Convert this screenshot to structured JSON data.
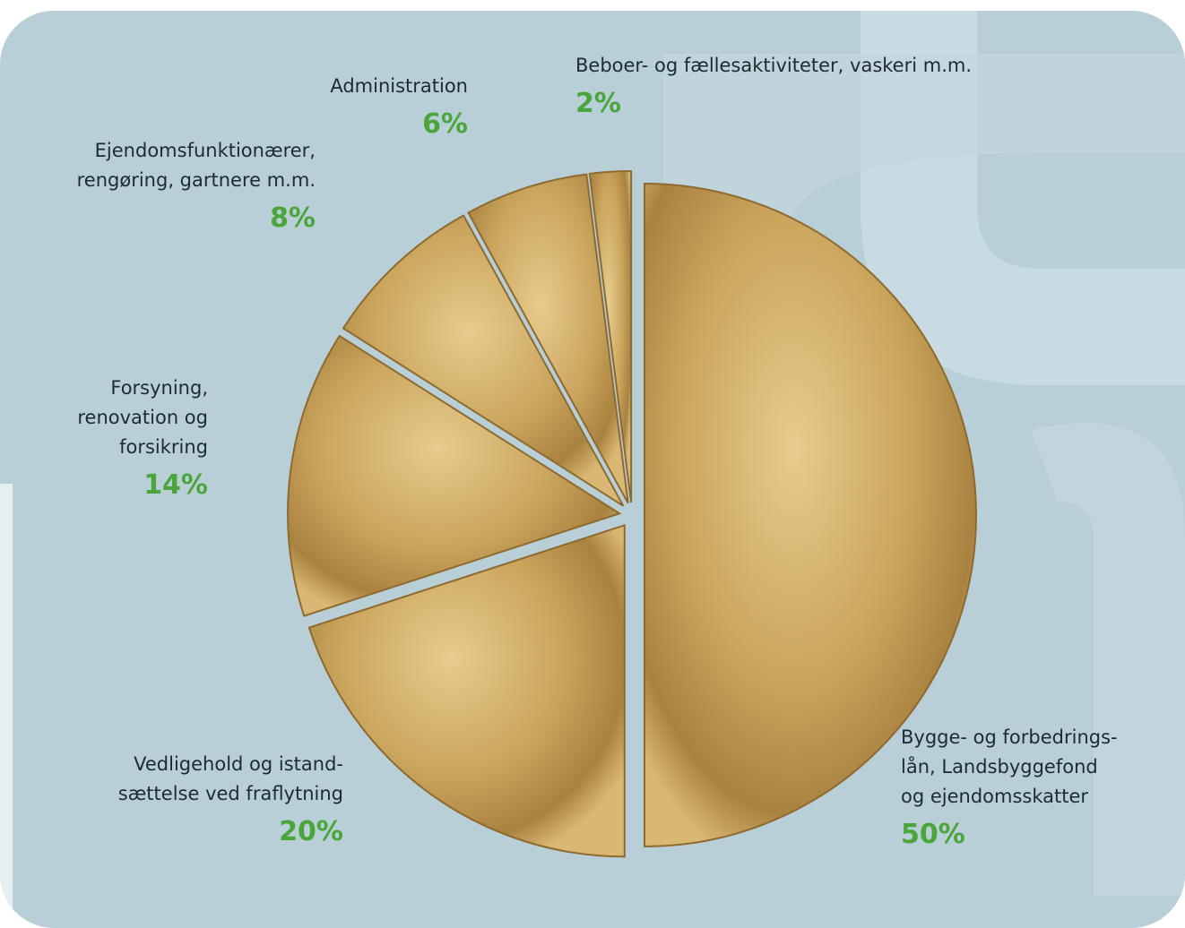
{
  "chart_data": {
    "type": "pie",
    "categories": [
      [
        "Bygge- og forbedrings-",
        "lån, Landsbyggefond",
        "og ejendomsskatter"
      ],
      [
        "Vedligehold og istand-",
        "sættelse ved fraflytning"
      ],
      [
        "Forsyning,",
        "renovation og",
        "forsikring"
      ],
      [
        "Ejendomsfunktionærer,",
        "rengøring, gartnere m.m."
      ],
      [
        "Administration"
      ],
      [
        "Beboer- og fællesaktiviteter, vaskeri m.m."
      ]
    ],
    "values": [
      50,
      20,
      14,
      8,
      6,
      2
    ],
    "value_labels": [
      "50%",
      "20%",
      "14%",
      "8%",
      "6%",
      "2%"
    ],
    "color": "#c9a45c"
  }
}
